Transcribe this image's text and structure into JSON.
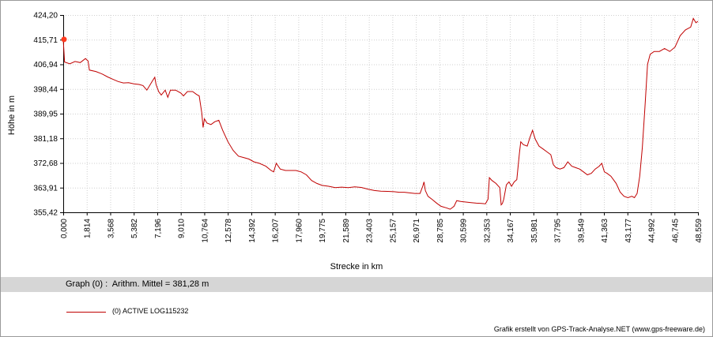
{
  "chart_data": {
    "type": "line",
    "xlabel": "Strecke  in  km",
    "ylabel": "Höhe  in  m",
    "xlim": [
      0.0,
      48.559
    ],
    "ylim": [
      355.42,
      424.2
    ],
    "x_ticks": [
      "0,000",
      "1,814",
      "3,568",
      "5,382",
      "7,196",
      "9,010",
      "10,764",
      "12,578",
      "14,392",
      "16,207",
      "17,960",
      "19,775",
      "21,589",
      "23,403",
      "25,157",
      "26,971",
      "28,785",
      "30,599",
      "32,353",
      "34,167",
      "35,981",
      "37,795",
      "39,549",
      "41,363",
      "43,177",
      "44,992",
      "46,745",
      "48,559"
    ],
    "y_ticks": [
      "424,20",
      "415,71",
      "406,94",
      "398,44",
      "389,95",
      "381,18",
      "372,68",
      "363,91",
      "355,42"
    ],
    "grid": true,
    "series": [
      {
        "name": "(0) ACTIVE LOG115232",
        "color": "#c00000",
        "points": [
          [
            0.0,
            415.7
          ],
          [
            0.1,
            407.8
          ],
          [
            0.5,
            407.2
          ],
          [
            0.9,
            408.0
          ],
          [
            1.3,
            407.6
          ],
          [
            1.7,
            409.0
          ],
          [
            1.9,
            408.2
          ],
          [
            2.0,
            405.0
          ],
          [
            2.5,
            404.5
          ],
          [
            3.0,
            403.6
          ],
          [
            3.4,
            402.6
          ],
          [
            3.8,
            401.8
          ],
          [
            4.2,
            401.0
          ],
          [
            4.6,
            400.5
          ],
          [
            5.0,
            400.6
          ],
          [
            5.4,
            400.2
          ],
          [
            5.8,
            400.0
          ],
          [
            6.1,
            399.6
          ],
          [
            6.4,
            398.0
          ],
          [
            6.8,
            401.0
          ],
          [
            7.0,
            402.5
          ],
          [
            7.1,
            400.0
          ],
          [
            7.3,
            397.5
          ],
          [
            7.5,
            396.3
          ],
          [
            7.8,
            398.0
          ],
          [
            8.0,
            395.5
          ],
          [
            8.2,
            398.0
          ],
          [
            8.6,
            398.0
          ],
          [
            9.0,
            397.0
          ],
          [
            9.2,
            396.0
          ],
          [
            9.5,
            397.5
          ],
          [
            9.9,
            397.5
          ],
          [
            10.2,
            396.5
          ],
          [
            10.4,
            396.0
          ],
          [
            10.6,
            390.0
          ],
          [
            10.7,
            385.0
          ],
          [
            10.8,
            388.0
          ],
          [
            11.0,
            386.5
          ],
          [
            11.3,
            386.0
          ],
          [
            11.6,
            387.0
          ],
          [
            11.9,
            387.5
          ],
          [
            12.2,
            384.0
          ],
          [
            12.6,
            380.0
          ],
          [
            13.0,
            377.0
          ],
          [
            13.4,
            375.0
          ],
          [
            13.8,
            374.5
          ],
          [
            14.2,
            374.0
          ],
          [
            14.6,
            373.0
          ],
          [
            15.0,
            372.5
          ],
          [
            15.5,
            371.5
          ],
          [
            15.9,
            370.0
          ],
          [
            16.1,
            369.5
          ],
          [
            16.3,
            372.5
          ],
          [
            16.6,
            370.5
          ],
          [
            17.0,
            370.0
          ],
          [
            17.4,
            370.0
          ],
          [
            17.8,
            370.0
          ],
          [
            18.2,
            369.5
          ],
          [
            18.6,
            368.5
          ],
          [
            19.0,
            366.5
          ],
          [
            19.4,
            365.5
          ],
          [
            19.8,
            364.8
          ],
          [
            20.3,
            364.5
          ],
          [
            20.8,
            364.0
          ],
          [
            21.3,
            364.2
          ],
          [
            21.8,
            364.0
          ],
          [
            22.3,
            364.3
          ],
          [
            22.8,
            364.1
          ],
          [
            23.3,
            363.5
          ],
          [
            23.8,
            363.0
          ],
          [
            24.3,
            362.8
          ],
          [
            24.8,
            362.7
          ],
          [
            25.3,
            362.6
          ],
          [
            25.7,
            362.4
          ],
          [
            26.1,
            362.4
          ],
          [
            26.5,
            362.2
          ],
          [
            26.9,
            362.0
          ],
          [
            27.3,
            362.0
          ],
          [
            27.5,
            364.5
          ],
          [
            27.6,
            366.0
          ],
          [
            27.7,
            363.0
          ],
          [
            27.9,
            361.0
          ],
          [
            28.2,
            360.0
          ],
          [
            28.6,
            358.5
          ],
          [
            28.9,
            357.5
          ],
          [
            29.3,
            357.0
          ],
          [
            29.6,
            356.5
          ],
          [
            29.9,
            357.5
          ],
          [
            30.1,
            359.5
          ],
          [
            30.4,
            359.2
          ],
          [
            30.8,
            359.0
          ],
          [
            31.2,
            358.8
          ],
          [
            31.6,
            358.6
          ],
          [
            32.0,
            358.5
          ],
          [
            32.3,
            358.4
          ],
          [
            32.5,
            360.0
          ],
          [
            32.6,
            367.5
          ],
          [
            32.8,
            366.5
          ],
          [
            33.1,
            365.5
          ],
          [
            33.4,
            364.0
          ],
          [
            33.5,
            358.0
          ],
          [
            33.6,
            358.5
          ],
          [
            33.7,
            360.0
          ],
          [
            33.9,
            365.0
          ],
          [
            34.1,
            366.0
          ],
          [
            34.3,
            364.5
          ],
          [
            34.5,
            366.0
          ],
          [
            34.7,
            366.8
          ],
          [
            34.9,
            376.0
          ],
          [
            35.0,
            380.0
          ],
          [
            35.2,
            379.0
          ],
          [
            35.5,
            378.5
          ],
          [
            35.7,
            381.5
          ],
          [
            35.9,
            384.0
          ],
          [
            36.1,
            381.0
          ],
          [
            36.4,
            378.5
          ],
          [
            36.7,
            377.5
          ],
          [
            37.0,
            376.5
          ],
          [
            37.3,
            375.5
          ],
          [
            37.5,
            372.0
          ],
          [
            37.7,
            371.0
          ],
          [
            38.0,
            370.5
          ],
          [
            38.3,
            371.0
          ],
          [
            38.6,
            373.0
          ],
          [
            38.9,
            371.5
          ],
          [
            39.2,
            371.0
          ],
          [
            39.5,
            370.5
          ],
          [
            39.8,
            369.5
          ],
          [
            40.1,
            368.5
          ],
          [
            40.4,
            369.0
          ],
          [
            40.7,
            370.5
          ],
          [
            41.0,
            371.5
          ],
          [
            41.2,
            372.5
          ],
          [
            41.4,
            369.5
          ],
          [
            41.6,
            369.0
          ],
          [
            41.9,
            368.0
          ],
          [
            42.3,
            365.5
          ],
          [
            42.6,
            362.5
          ],
          [
            42.9,
            361.0
          ],
          [
            43.2,
            360.5
          ],
          [
            43.5,
            361.0
          ],
          [
            43.7,
            360.5
          ],
          [
            43.9,
            362.0
          ],
          [
            44.1,
            368.0
          ],
          [
            44.3,
            378.0
          ],
          [
            44.5,
            392.0
          ],
          [
            44.7,
            407.0
          ],
          [
            44.9,
            410.5
          ],
          [
            45.2,
            411.5
          ],
          [
            45.6,
            411.5
          ],
          [
            46.0,
            412.5
          ],
          [
            46.4,
            411.5
          ],
          [
            46.8,
            413.0
          ],
          [
            47.2,
            417.0
          ],
          [
            47.6,
            419.0
          ],
          [
            48.0,
            420.0
          ],
          [
            48.2,
            423.0
          ],
          [
            48.4,
            421.5
          ],
          [
            48.559,
            422.0
          ]
        ]
      }
    ],
    "marker": {
      "x": 0.0,
      "y": 415.71
    }
  },
  "stats": {
    "text": "Graph (0) :  Arithm. Mittel = 381,28 m"
  },
  "legend": {
    "label": "(0) ACTIVE LOG115232"
  },
  "credit": "Grafik erstellt von GPS-Track-Analyse.NET (www.gps-freeware.de)"
}
